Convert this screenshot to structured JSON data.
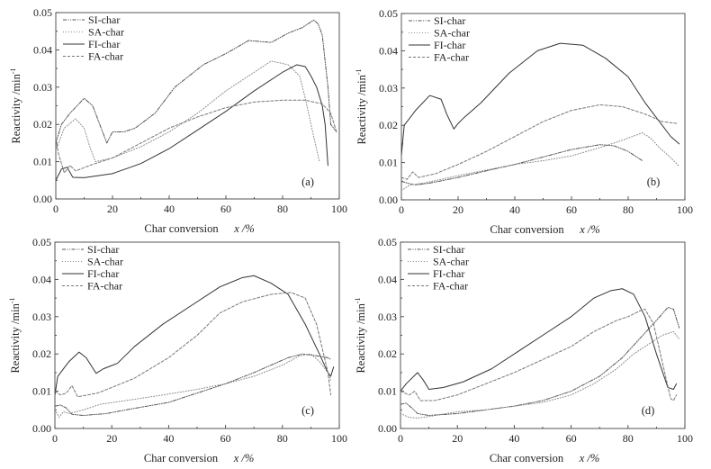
{
  "figure": {
    "series_styles": {
      "SI-char": {
        "dash": "dashdotdot",
        "color": "#555555"
      },
      "SA-char": {
        "dash": "dotted",
        "color": "#888888"
      },
      "FI-char": {
        "dash": "solid",
        "color": "#333333"
      },
      "FA-char": {
        "dash": "dashed",
        "color": "#777777"
      }
    }
  },
  "chart_data": [
    {
      "type": "line",
      "panel_label": "(a)",
      "title": "",
      "xlabel": "Char conversion",
      "xlabel_var": "x /%",
      "ylabel": "Reactivity /min",
      "ylabel_sup": "-1",
      "xlim": [
        0,
        100
      ],
      "ylim": [
        0,
        0.05
      ],
      "xticks": [
        "0",
        "20",
        "40",
        "60",
        "80",
        "100"
      ],
      "yticks": [
        "0.00",
        "0.01",
        "0.02",
        "0.03",
        "0.04",
        "0.05"
      ],
      "grid": false,
      "legend": {
        "position": "top-left",
        "entries": [
          "SI-char",
          "SA-char",
          "FI-char",
          "FA-char"
        ]
      },
      "series": [
        {
          "name": "SI-char",
          "x": [
            0,
            2,
            5,
            10,
            13,
            18,
            20,
            24,
            28,
            35,
            42,
            52,
            60,
            68,
            76,
            82,
            87,
            91,
            92.5,
            94,
            96,
            97,
            99
          ],
          "y": [
            0.015,
            0.02,
            0.023,
            0.027,
            0.025,
            0.015,
            0.018,
            0.018,
            0.019,
            0.023,
            0.03,
            0.036,
            0.039,
            0.0425,
            0.042,
            0.0445,
            0.046,
            0.048,
            0.047,
            0.044,
            0.03,
            0.02,
            0.018
          ]
        },
        {
          "name": "SA-char",
          "x": [
            0,
            3,
            7,
            10,
            12,
            14,
            20,
            30,
            40,
            50,
            60,
            70,
            76,
            82,
            86,
            88,
            90,
            93
          ],
          "y": [
            0.013,
            0.019,
            0.0215,
            0.019,
            0.014,
            0.01,
            0.011,
            0.014,
            0.018,
            0.023,
            0.029,
            0.034,
            0.037,
            0.036,
            0.033,
            0.027,
            0.02,
            0.01
          ]
        },
        {
          "name": "FI-char",
          "x": [
            0,
            1,
            2,
            4,
            6,
            10,
            20,
            30,
            40,
            50,
            60,
            70,
            80,
            85,
            88,
            90,
            92,
            94,
            95,
            96
          ],
          "y": [
            0.005,
            0.0065,
            0.008,
            0.0085,
            0.0058,
            0.0057,
            0.0068,
            0.0095,
            0.0135,
            0.0185,
            0.0235,
            0.029,
            0.034,
            0.036,
            0.0355,
            0.033,
            0.03,
            0.025,
            0.02,
            0.009
          ]
        },
        {
          "name": "FA-char",
          "x": [
            0,
            1,
            3,
            5,
            7,
            12,
            20,
            30,
            40,
            50,
            60,
            70,
            80,
            88,
            94,
            97,
            99
          ],
          "y": [
            0.016,
            0.012,
            0.007,
            0.009,
            0.0075,
            0.009,
            0.011,
            0.015,
            0.019,
            0.022,
            0.0245,
            0.026,
            0.0265,
            0.0265,
            0.0255,
            0.023,
            0.018
          ]
        }
      ]
    },
    {
      "type": "line",
      "panel_label": "(b)",
      "title": "",
      "xlabel": "Char conversion",
      "xlabel_var": "x /%",
      "ylabel": "Reactivity /min",
      "ylabel_sup": "-1",
      "xlim": [
        0,
        100
      ],
      "ylim": [
        0,
        0.05
      ],
      "xticks": [
        "0",
        "20",
        "40",
        "60",
        "80",
        "100"
      ],
      "yticks": [
        "0.00",
        "0.01",
        "0.02",
        "0.03",
        "0.04",
        "0.05"
      ],
      "grid": false,
      "legend": {
        "position": "top-left",
        "entries": [
          "SI-char",
          "SA-char",
          "FI-char",
          "FA-char"
        ]
      },
      "series": [
        {
          "name": "SI-char",
          "x": [
            0,
            2,
            5,
            10,
            20,
            30,
            40,
            50,
            60,
            70,
            75,
            80,
            82,
            85
          ],
          "y": [
            0.005,
            0.0045,
            0.004,
            0.0045,
            0.006,
            0.0078,
            0.0095,
            0.0115,
            0.0135,
            0.0148,
            0.0145,
            0.013,
            0.012,
            0.0105
          ]
        },
        {
          "name": "SA-char",
          "x": [
            0,
            3,
            8,
            20,
            30,
            40,
            50,
            60,
            70,
            78,
            85,
            88,
            91,
            94,
            98
          ],
          "y": [
            0.0025,
            0.004,
            0.0045,
            0.0065,
            0.008,
            0.0095,
            0.0105,
            0.0118,
            0.014,
            0.016,
            0.018,
            0.0165,
            0.014,
            0.012,
            0.009
          ]
        },
        {
          "name": "FI-char",
          "x": [
            0,
            1,
            5,
            10,
            14,
            16,
            18.5,
            20,
            22,
            28,
            38,
            48,
            56,
            64,
            72,
            80,
            86,
            91,
            95,
            98
          ],
          "y": [
            0.012,
            0.02,
            0.024,
            0.028,
            0.027,
            0.023,
            0.019,
            0.0205,
            0.022,
            0.026,
            0.034,
            0.04,
            0.042,
            0.0415,
            0.038,
            0.033,
            0.026,
            0.021,
            0.017,
            0.015
          ]
        },
        {
          "name": "FA-char",
          "x": [
            0,
            2,
            4,
            6,
            12,
            20,
            30,
            40,
            50,
            60,
            70,
            78,
            86,
            92,
            97
          ],
          "y": [
            0.006,
            0.0055,
            0.0075,
            0.006,
            0.007,
            0.0095,
            0.013,
            0.017,
            0.021,
            0.024,
            0.0255,
            0.025,
            0.023,
            0.021,
            0.0205
          ]
        }
      ]
    },
    {
      "type": "line",
      "panel_label": "(c)",
      "title": "",
      "xlabel": "Char conversion",
      "xlabel_var": "x /%",
      "ylabel": "Reactivity /min",
      "ylabel_sup": "-1",
      "xlim": [
        0,
        100
      ],
      "ylim": [
        0,
        0.05
      ],
      "xticks": [
        "0",
        "20",
        "40",
        "60",
        "80",
        "100"
      ],
      "yticks": [
        "0.00",
        "0.01",
        "0.02",
        "0.03",
        "0.04",
        "0.05"
      ],
      "grid": false,
      "legend": {
        "position": "top-left",
        "entries": [
          "SI-char",
          "SA-char",
          "FI-char",
          "FA-char"
        ]
      },
      "series": [
        {
          "name": "SI-char",
          "x": [
            0,
            2,
            4,
            6,
            10,
            18,
            25,
            40,
            50,
            60,
            70,
            82,
            87,
            92,
            96,
            97
          ],
          "y": [
            0.006,
            0.0063,
            0.0055,
            0.0038,
            0.0035,
            0.004,
            0.005,
            0.007,
            0.0095,
            0.012,
            0.015,
            0.019,
            0.02,
            0.0195,
            0.019,
            0.0185
          ]
        },
        {
          "name": "SA-char",
          "x": [
            0,
            1.5,
            3,
            5,
            10,
            16,
            25,
            38,
            50,
            60,
            70,
            80,
            86,
            90,
            93,
            96,
            97
          ],
          "y": [
            0.005,
            0.003,
            0.0045,
            0.004,
            0.005,
            0.0065,
            0.0075,
            0.009,
            0.0105,
            0.012,
            0.014,
            0.017,
            0.0195,
            0.02,
            0.018,
            0.015,
            0.013
          ]
        },
        {
          "name": "FI-char",
          "x": [
            0,
            1,
            5,
            8.5,
            11,
            14.5,
            17,
            22,
            28,
            38,
            48,
            58,
            66,
            70,
            76,
            82,
            88,
            93,
            96,
            97,
            98
          ],
          "y": [
            0.009,
            0.014,
            0.018,
            0.0205,
            0.019,
            0.0148,
            0.016,
            0.0175,
            0.022,
            0.028,
            0.033,
            0.038,
            0.0405,
            0.041,
            0.039,
            0.036,
            0.028,
            0.02,
            0.015,
            0.014,
            0.0165
          ]
        },
        {
          "name": "FA-char",
          "x": [
            0,
            2,
            4,
            6,
            8,
            15,
            20,
            28,
            40,
            50,
            58,
            66,
            76,
            83,
            88,
            92,
            96,
            97
          ],
          "y": [
            0.01,
            0.009,
            0.0095,
            0.0115,
            0.0085,
            0.0095,
            0.011,
            0.0135,
            0.019,
            0.025,
            0.031,
            0.034,
            0.036,
            0.0365,
            0.035,
            0.028,
            0.015,
            0.009
          ]
        }
      ]
    },
    {
      "type": "line",
      "panel_label": "(d)",
      "title": "",
      "xlabel": "Char conversion",
      "xlabel_var": "x /%",
      "ylabel": "Reactivity /min",
      "ylabel_sup": "-1",
      "xlim": [
        0,
        100
      ],
      "ylim": [
        0,
        0.05
      ],
      "xticks": [
        "0",
        "20",
        "40",
        "60",
        "80",
        "100"
      ],
      "yticks": [
        "0.00",
        "0.01",
        "0.02",
        "0.03",
        "0.04",
        "0.05"
      ],
      "grid": false,
      "legend": {
        "position": "top-left",
        "entries": [
          "SI-char",
          "SA-char",
          "FI-char",
          "FA-char"
        ]
      },
      "series": [
        {
          "name": "SI-char",
          "x": [
            0,
            2,
            4,
            6,
            10,
            20,
            30,
            40,
            50,
            60,
            70,
            78,
            84,
            90,
            94,
            96,
            98
          ],
          "y": [
            0.0065,
            0.0068,
            0.0055,
            0.004,
            0.0035,
            0.004,
            0.005,
            0.006,
            0.0075,
            0.01,
            0.014,
            0.019,
            0.024,
            0.029,
            0.0325,
            0.032,
            0.027
          ]
        },
        {
          "name": "SA-char",
          "x": [
            0,
            3,
            6,
            10,
            20,
            30,
            40,
            50,
            60,
            68,
            76,
            82,
            88,
            92,
            96,
            98
          ],
          "y": [
            0.004,
            0.003,
            0.0028,
            0.0032,
            0.0045,
            0.005,
            0.006,
            0.007,
            0.009,
            0.012,
            0.016,
            0.02,
            0.023,
            0.025,
            0.026,
            0.024
          ]
        },
        {
          "name": "FI-char",
          "x": [
            0,
            2,
            6,
            8,
            10,
            15,
            22,
            32,
            42,
            52,
            60,
            68,
            74,
            78,
            82,
            86,
            90,
            94,
            96,
            97
          ],
          "y": [
            0.01,
            0.012,
            0.015,
            0.013,
            0.0105,
            0.011,
            0.0125,
            0.016,
            0.021,
            0.026,
            0.03,
            0.035,
            0.037,
            0.0375,
            0.036,
            0.03,
            0.02,
            0.011,
            0.0105,
            0.012
          ]
        },
        {
          "name": "FA-char",
          "x": [
            0,
            3,
            5,
            7,
            12,
            20,
            30,
            40,
            50,
            60,
            68,
            76,
            80,
            84,
            86,
            89,
            92,
            95,
            96,
            97
          ],
          "y": [
            0.01,
            0.009,
            0.01,
            0.0075,
            0.0075,
            0.009,
            0.012,
            0.015,
            0.0185,
            0.022,
            0.026,
            0.029,
            0.03,
            0.0315,
            0.032,
            0.028,
            0.018,
            0.008,
            0.0075,
            0.009
          ]
        }
      ]
    }
  ]
}
